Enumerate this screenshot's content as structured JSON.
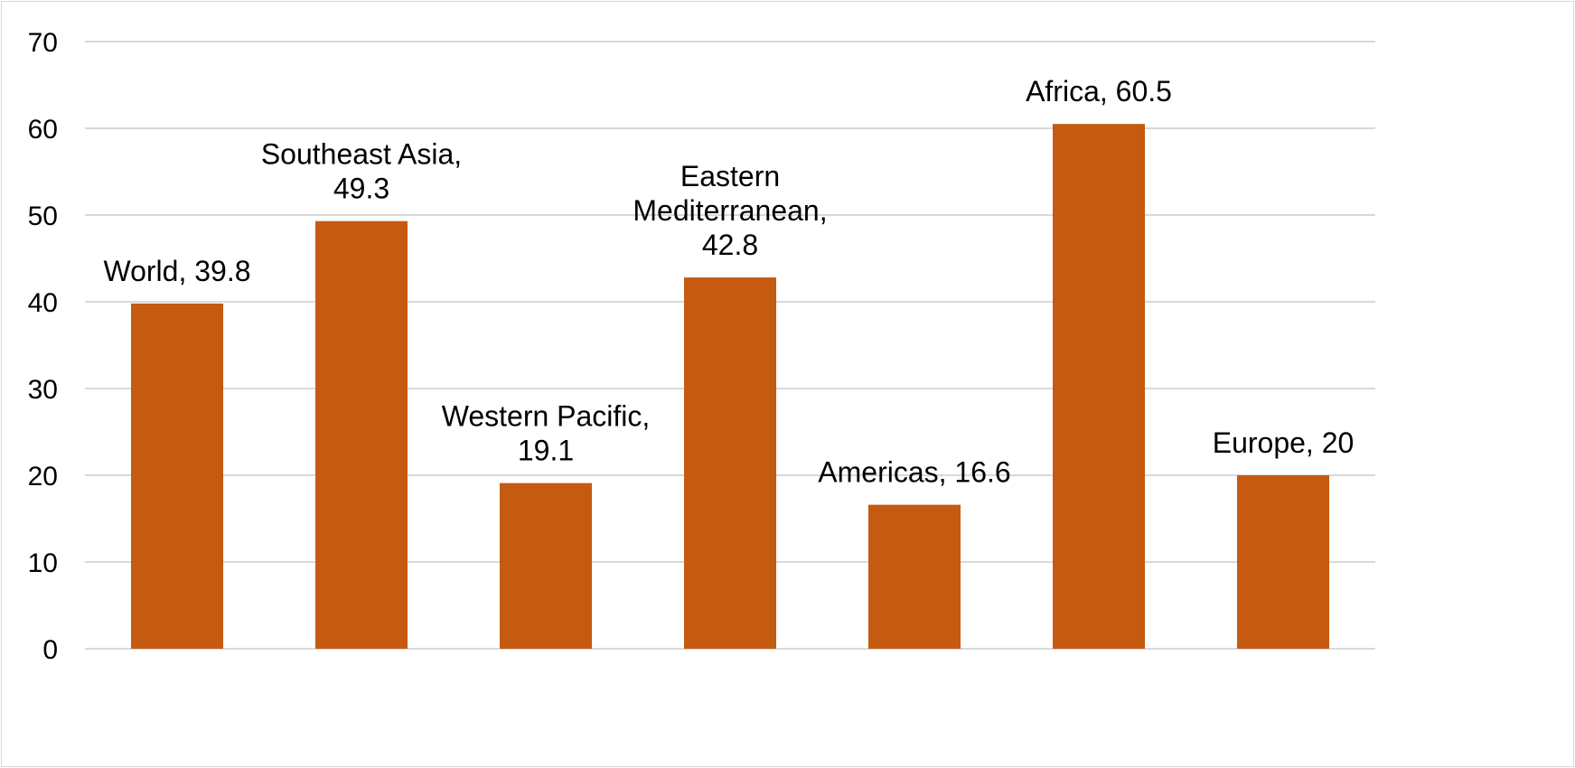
{
  "chart_data": {
    "type": "bar",
    "categories": [
      "World",
      "Southeast Asia",
      "Western Pacific",
      "Eastern Mediterranean",
      "Americas",
      "Africa",
      "Europe"
    ],
    "values": [
      39.8,
      49.3,
      19.1,
      42.8,
      16.6,
      60.5,
      20
    ],
    "data_labels": [
      [
        "World, 39.8"
      ],
      [
        "Southeast Asia,",
        "49.3"
      ],
      [
        "Western Pacific,",
        "19.1"
      ],
      [
        "Eastern",
        "Mediterranean,",
        "42.8"
      ],
      [
        "Americas, 16.6"
      ],
      [
        "Africa, 60.5"
      ],
      [
        "Europe, 20"
      ]
    ],
    "title": "",
    "xlabel": "",
    "ylabel": "",
    "ylim": [
      0,
      70
    ],
    "yticks": [
      "0",
      "10",
      "20",
      "30",
      "40",
      "50",
      "60",
      "70"
    ],
    "grid": true,
    "legend": "none",
    "bar_color": "#C55A11",
    "grid_color": "#D9D9D9"
  }
}
